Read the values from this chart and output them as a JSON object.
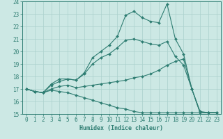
{
  "xlabel": "Humidex (Indice chaleur)",
  "ylabel": "",
  "x": [
    0,
    1,
    2,
    3,
    4,
    5,
    6,
    7,
    8,
    9,
    10,
    11,
    12,
    13,
    14,
    15,
    16,
    17,
    18,
    19,
    20,
    21,
    22,
    23
  ],
  "line_max": [
    17,
    16.8,
    16.7,
    17.4,
    17.8,
    17.8,
    17.7,
    18.3,
    19.5,
    20.0,
    20.5,
    21.2,
    22.9,
    23.2,
    22.7,
    22.4,
    22.3,
    23.8,
    21.0,
    19.8,
    17.0,
    15.1,
    15.1,
    15.1
  ],
  "line_mean": [
    17,
    16.8,
    16.7,
    17.3,
    17.6,
    17.8,
    17.7,
    18.2,
    19.0,
    19.5,
    19.8,
    20.3,
    20.9,
    21.0,
    20.8,
    20.6,
    20.5,
    20.8,
    19.6,
    18.9,
    17.0,
    15.1,
    15.1,
    15.1
  ],
  "line_min": [
    17,
    16.8,
    16.7,
    17.0,
    17.2,
    17.3,
    17.1,
    17.2,
    17.3,
    17.4,
    17.5,
    17.6,
    17.7,
    17.9,
    18.0,
    18.2,
    18.5,
    18.9,
    19.2,
    19.4,
    17.0,
    15.2,
    15.1,
    15.1
  ],
  "line_low": [
    17,
    16.8,
    16.7,
    16.9,
    16.8,
    16.7,
    16.5,
    16.3,
    16.1,
    15.9,
    15.7,
    15.5,
    15.4,
    15.2,
    15.1,
    15.1,
    15.1,
    15.1,
    15.1,
    15.1,
    15.1,
    15.1,
    15.1,
    15.1
  ],
  "color": "#2e7d72",
  "bg_color": "#cce8e4",
  "grid_color": "#aad0cc",
  "ylim": [
    15,
    24
  ],
  "xlim": [
    -0.5,
    23.5
  ],
  "yticks": [
    15,
    16,
    17,
    18,
    19,
    20,
    21,
    22,
    23,
    24
  ],
  "xticks": [
    0,
    1,
    2,
    3,
    4,
    5,
    6,
    7,
    8,
    9,
    10,
    11,
    12,
    13,
    14,
    15,
    16,
    17,
    18,
    19,
    20,
    21,
    22,
    23
  ],
  "tick_fontsize": 5.5,
  "xlabel_fontsize": 6.0,
  "marker_size": 2.0,
  "line_width": 0.8
}
